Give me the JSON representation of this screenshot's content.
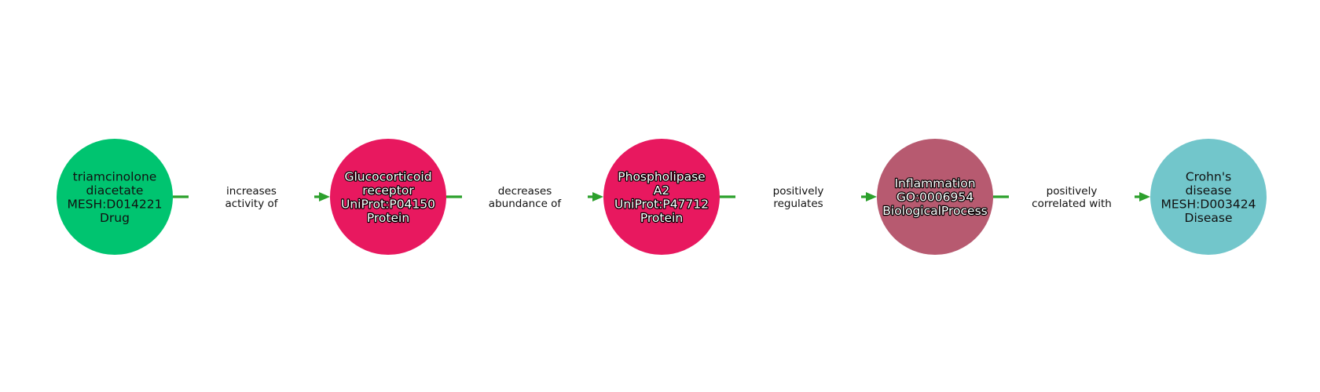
{
  "diagram": {
    "edge_color": "#2ca02c",
    "nodes": [
      {
        "id": "n1",
        "lines": [
          "triamcinolone",
          "diacetate",
          "MESH:D014221",
          "Drug"
        ],
        "fill": "#00c470",
        "text_style": "dark"
      },
      {
        "id": "n2",
        "lines": [
          "Glucocorticoid",
          "receptor",
          "UniProt:P04150",
          "Protein"
        ],
        "fill": "#e8185f",
        "text_style": "light"
      },
      {
        "id": "n3",
        "lines": [
          "Phospholipase",
          "A2",
          "UniProt:P47712",
          "Protein"
        ],
        "fill": "#e8185f",
        "text_style": "light"
      },
      {
        "id": "n4",
        "lines": [
          "Inflammation",
          "GO:0006954",
          "BiologicalProcess"
        ],
        "fill": "#b75a70",
        "text_style": "light"
      },
      {
        "id": "n5",
        "lines": [
          "Crohn's",
          "disease",
          "MESH:D003424",
          "Disease"
        ],
        "fill": "#72c6cb",
        "text_style": "dark"
      }
    ],
    "edges": [
      {
        "from": "n1",
        "to": "n2",
        "label_lines": [
          "increases",
          "activity of"
        ]
      },
      {
        "from": "n2",
        "to": "n3",
        "label_lines": [
          "decreases",
          "abundance of"
        ]
      },
      {
        "from": "n3",
        "to": "n4",
        "label_lines": [
          "positively",
          "regulates"
        ]
      },
      {
        "from": "n4",
        "to": "n5",
        "label_lines": [
          "positively",
          "correlated with"
        ]
      }
    ]
  }
}
